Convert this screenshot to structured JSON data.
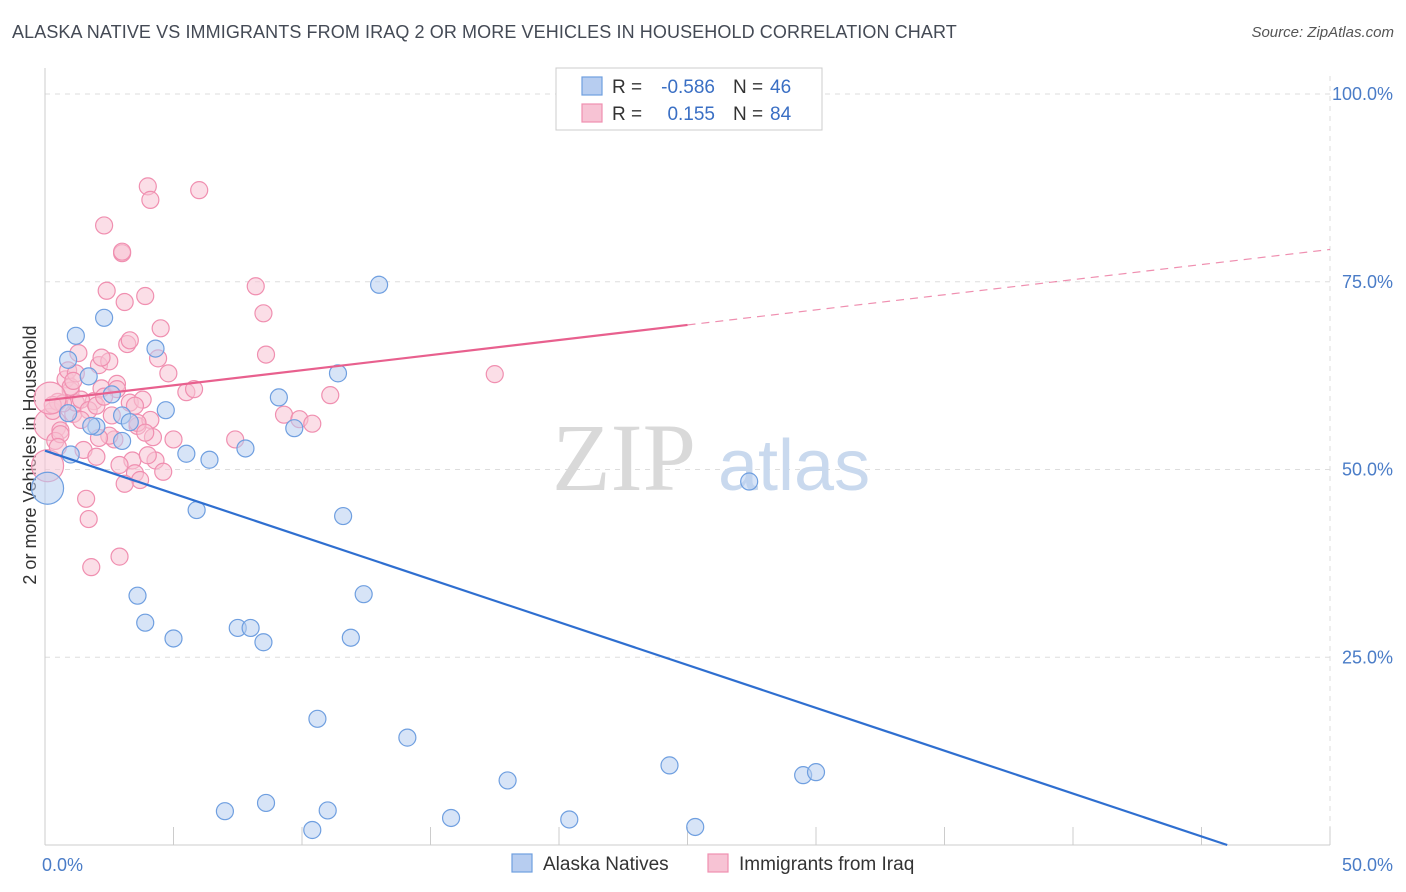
{
  "header": {
    "title": "ALASKA NATIVE VS IMMIGRANTS FROM IRAQ 2 OR MORE VEHICLES IN HOUSEHOLD CORRELATION CHART",
    "source": "Source: ZipAtlas.com"
  },
  "watermark": {
    "zip": "ZIP",
    "atlas": "atlas"
  },
  "legend": {
    "rows": [
      {
        "r_label": "R =",
        "r_value": "-0.586",
        "n_label": "N =",
        "n_value": "46",
        "color": "#6f9fe0"
      },
      {
        "r_label": "R =",
        "r_value": "0.155",
        "n_label": "N =",
        "n_value": "84",
        "color": "#f08fb0"
      }
    ]
  },
  "bottom_legend": [
    "Alaska Natives",
    "Immigrants from Iraq"
  ],
  "colors": {
    "blue_fill": "#b7cdf0",
    "blue_stroke": "#6f9fe0",
    "blue_line": "#2f6fd0",
    "pink_fill": "#f7c3d4",
    "pink_stroke": "#f08fb0",
    "pink_line": "#e8608e",
    "grid": "#dddddd",
    "axis_label": "#4a7cc7"
  },
  "chart_data": {
    "type": "scatter",
    "title": "ALASKA NATIVE VS IMMIGRANTS FROM IRAQ 2 OR MORE VEHICLES IN HOUSEHOLD CORRELATION CHART",
    "xlabel": "",
    "ylabel": "2 or more Vehicles in Household",
    "xlim": [
      0,
      50
    ],
    "ylim": [
      0,
      100
    ],
    "x_tick_labels": [
      "0.0%",
      "50.0%"
    ],
    "y_tick_labels": [
      "25.0%",
      "50.0%",
      "75.0%",
      "100.0%"
    ],
    "y_ticks": [
      25,
      50,
      75,
      100
    ],
    "grid": true,
    "legend_position": "top-center",
    "series": [
      {
        "name": "Alaska Natives",
        "points": [
          [
            0.1,
            47.5
          ],
          [
            0.9,
            64.6
          ],
          [
            1.2,
            67.8
          ],
          [
            1.7,
            62.4
          ],
          [
            2.0,
            55.7
          ],
          [
            2.3,
            70.2
          ],
          [
            2.6,
            60.0
          ],
          [
            3.0,
            57.2
          ],
          [
            3.3,
            56.3
          ],
          [
            3.0,
            53.8
          ],
          [
            3.6,
            33.2
          ],
          [
            3.9,
            29.6
          ],
          [
            4.3,
            66.1
          ],
          [
            4.7,
            57.9
          ],
          [
            5.0,
            27.5
          ],
          [
            5.5,
            52.1
          ],
          [
            5.9,
            44.6
          ],
          [
            6.4,
            51.3
          ],
          [
            7.0,
            4.5
          ],
          [
            7.5,
            28.9
          ],
          [
            7.8,
            52.8
          ],
          [
            8.0,
            28.9
          ],
          [
            8.6,
            5.6
          ],
          [
            8.5,
            27.0
          ],
          [
            9.1,
            59.6
          ],
          [
            9.7,
            55.5
          ],
          [
            10.4,
            2.0
          ],
          [
            10.6,
            16.8
          ],
          [
            11.0,
            4.6
          ],
          [
            11.4,
            62.8
          ],
          [
            11.6,
            43.8
          ],
          [
            11.9,
            27.6
          ],
          [
            12.4,
            33.4
          ],
          [
            13.0,
            74.6
          ],
          [
            14.1,
            14.3
          ],
          [
            15.8,
            3.6
          ],
          [
            18.0,
            8.6
          ],
          [
            20.4,
            3.4
          ],
          [
            24.3,
            10.6
          ],
          [
            25.3,
            2.4
          ],
          [
            27.4,
            48.4
          ],
          [
            29.5,
            9.3
          ],
          [
            30.0,
            9.7
          ],
          [
            0.9,
            57.5
          ],
          [
            1.8,
            55.8
          ],
          [
            1.0,
            52.0
          ]
        ]
      },
      {
        "name": "Immigrants from Iraq",
        "points": [
          [
            0.1,
            50.5
          ],
          [
            0.2,
            56.0
          ],
          [
            0.3,
            57.8
          ],
          [
            0.5,
            59.0
          ],
          [
            0.6,
            55.2
          ],
          [
            0.8,
            62.0
          ],
          [
            0.9,
            63.2
          ],
          [
            1.0,
            60.5
          ],
          [
            1.1,
            57.4
          ],
          [
            1.2,
            58.9
          ],
          [
            1.3,
            65.5
          ],
          [
            1.5,
            52.6
          ],
          [
            1.6,
            46.1
          ],
          [
            1.7,
            43.4
          ],
          [
            1.8,
            37.0
          ],
          [
            1.9,
            59.1
          ],
          [
            2.0,
            51.7
          ],
          [
            2.1,
            63.9
          ],
          [
            2.2,
            60.8
          ],
          [
            2.3,
            82.5
          ],
          [
            2.4,
            73.8
          ],
          [
            2.5,
            64.4
          ],
          [
            2.6,
            57.2
          ],
          [
            2.7,
            54.0
          ],
          [
            2.8,
            61.4
          ],
          [
            2.9,
            38.4
          ],
          [
            3.0,
            78.8
          ],
          [
            3.1,
            72.3
          ],
          [
            3.2,
            66.7
          ],
          [
            3.3,
            58.9
          ],
          [
            3.4,
            51.2
          ],
          [
            3.5,
            49.5
          ],
          [
            3.6,
            55.8
          ],
          [
            3.7,
            48.6
          ],
          [
            3.8,
            59.3
          ],
          [
            3.9,
            73.1
          ],
          [
            4.0,
            87.7
          ],
          [
            4.1,
            85.9
          ],
          [
            4.2,
            54.3
          ],
          [
            4.3,
            51.2
          ],
          [
            4.4,
            64.8
          ],
          [
            4.5,
            68.8
          ],
          [
            4.6,
            49.7
          ],
          [
            4.8,
            62.8
          ],
          [
            5.0,
            54.0
          ],
          [
            5.5,
            60.3
          ],
          [
            5.8,
            60.7
          ],
          [
            6.0,
            87.2
          ],
          [
            7.4,
            54.0
          ],
          [
            8.2,
            74.4
          ],
          [
            8.5,
            70.8
          ],
          [
            8.6,
            65.3
          ],
          [
            9.3,
            57.3
          ],
          [
            9.9,
            56.7
          ],
          [
            10.4,
            56.1
          ],
          [
            11.1,
            59.9
          ],
          [
            17.5,
            62.7
          ],
          [
            0.4,
            53.8
          ],
          [
            0.7,
            58.8
          ],
          [
            1.4,
            59.3
          ],
          [
            2.2,
            64.9
          ],
          [
            2.9,
            50.6
          ],
          [
            3.5,
            58.5
          ],
          [
            4.1,
            56.6
          ],
          [
            0.3,
            58.6
          ],
          [
            1.0,
            61.0
          ],
          [
            1.7,
            57.9
          ],
          [
            2.5,
            54.5
          ],
          [
            3.3,
            67.2
          ],
          [
            4.0,
            51.9
          ],
          [
            0.6,
            54.7
          ],
          [
            1.2,
            62.8
          ],
          [
            2.0,
            58.5
          ],
          [
            2.8,
            60.7
          ],
          [
            3.6,
            56.2
          ],
          [
            0.5,
            53.0
          ],
          [
            1.4,
            56.6
          ],
          [
            2.3,
            59.7
          ],
          [
            3.1,
            48.1
          ],
          [
            3.9,
            54.9
          ],
          [
            0.2,
            59.5
          ],
          [
            1.1,
            61.8
          ],
          [
            2.1,
            54.2
          ],
          [
            3.0,
            79.0
          ]
        ]
      }
    ],
    "trend_lines": [
      {
        "series": "Alaska Natives",
        "x": [
          0,
          46.0
        ],
        "y": [
          52.5,
          0
        ],
        "solid_to": 46.0
      },
      {
        "series": "Immigrants from Iraq",
        "x": [
          0,
          50
        ],
        "y": [
          59.2,
          79.3
        ],
        "solid_to": 25
      }
    ]
  }
}
